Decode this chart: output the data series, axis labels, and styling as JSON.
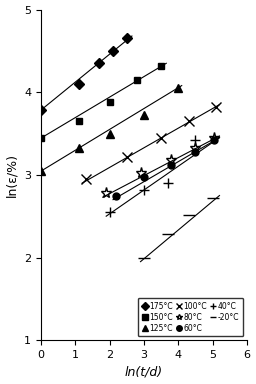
{
  "title": "",
  "xlabel": "ln(t/d)",
  "ylabel": "ln(ε/%)",
  "xlim": [
    0,
    6
  ],
  "ylim": [
    1,
    5
  ],
  "xticks": [
    0,
    1,
    2,
    3,
    4,
    5,
    6
  ],
  "yticks": [
    1,
    2,
    3,
    4,
    5
  ],
  "series": [
    {
      "label": "175°C",
      "marker": "D",
      "x": [
        0.0,
        1.1,
        1.7,
        2.1,
        2.5
      ],
      "y": [
        3.78,
        4.1,
        4.35,
        4.5,
        4.65
      ],
      "fit_x": [
        -0.1,
        2.65
      ],
      "fit_y": [
        3.75,
        4.68
      ]
    },
    {
      "label": "150°C",
      "marker": "s",
      "x": [
        0.0,
        1.1,
        2.0,
        2.8,
        3.5
      ],
      "y": [
        3.45,
        3.65,
        3.88,
        4.15,
        4.32
      ],
      "fit_x": [
        -0.1,
        3.65
      ],
      "fit_y": [
        3.42,
        4.35
      ]
    },
    {
      "label": "125°C",
      "marker": "^",
      "x": [
        0.0,
        1.1,
        2.0,
        3.0,
        4.0
      ],
      "y": [
        3.05,
        3.32,
        3.5,
        3.72,
        4.05
      ],
      "fit_x": [
        -0.1,
        4.1
      ],
      "fit_y": [
        3.02,
        4.08
      ]
    },
    {
      "label": "100°C",
      "marker": "x",
      "x": [
        1.3,
        2.5,
        3.5,
        4.3,
        5.1
      ],
      "y": [
        2.95,
        3.22,
        3.45,
        3.65,
        3.82
      ],
      "fit_x": [
        1.2,
        5.2
      ],
      "fit_y": [
        2.9,
        3.85
      ]
    },
    {
      "label": "80°C",
      "marker": "*",
      "x": [
        1.9,
        2.9,
        3.8,
        4.5,
        5.05
      ],
      "y": [
        2.78,
        3.02,
        3.18,
        3.33,
        3.45
      ],
      "fit_x": [
        1.8,
        5.2
      ],
      "fit_y": [
        2.73,
        3.47
      ]
    },
    {
      "label": "60°C",
      "marker": "o",
      "x": [
        2.2,
        3.0,
        3.8,
        4.5,
        5.05
      ],
      "y": [
        2.75,
        2.98,
        3.12,
        3.28,
        3.42
      ],
      "fit_x": [
        2.1,
        5.2
      ],
      "fit_y": [
        2.7,
        3.45
      ]
    },
    {
      "label": "40°C",
      "marker": "+",
      "x": [
        2.0,
        3.0,
        3.7,
        4.5
      ],
      "y": [
        2.55,
        2.82,
        2.9,
        3.42
      ],
      "fit_x": [
        1.9,
        5.2
      ],
      "fit_y": [
        2.5,
        3.45
      ]
    },
    {
      "label": "-20°C",
      "marker": "_",
      "x": [
        3.0,
        3.7,
        4.3,
        5.0
      ],
      "y": [
        2.0,
        2.28,
        2.52,
        2.72
      ],
      "fit_x": [
        2.9,
        5.2
      ],
      "fit_y": [
        1.95,
        2.75
      ]
    }
  ],
  "legend_order": [
    [
      "175°C",
      "150°C",
      "125°C"
    ],
    [
      "100°C",
      "80°C",
      "60°C"
    ],
    [
      "40°C",
      "-20°C",
      ""
    ]
  ]
}
